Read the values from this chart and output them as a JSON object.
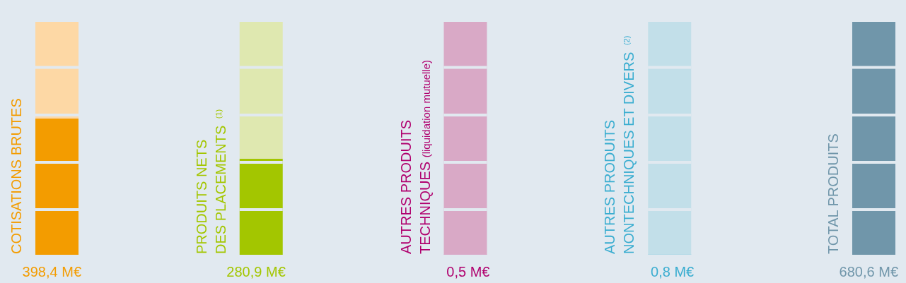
{
  "chart_data": {
    "type": "bar",
    "stacked": true,
    "categories": [
      "COTISATIONS BRUTES",
      "PRODUITS NETS\nDES PLACEMENTS $^{(1)}$",
      "AUTRES PRODUITS\nTECHNIQUES (liquidation mutuelle)",
      "AUTRES PRODUITS\nNONTECHNIQUES ET DIVERS $^{(2)}$",
      "TOTAL PRODUITS"
    ],
    "series": [
      {
        "values": [
          398.4,
          280.9,
          0.5,
          0.8,
          680.6
        ],
        "colors": [
          "#f39c00",
          "#a3c600",
          "#b0006e",
          "#3aadd0",
          "#7096aa"
        ],
        "value_labels": [
          "398,4 M€",
          "280,9 M€",
          "0,5 M€",
          "0,8 M€",
          "680,6 M€"
        ]
      },
      {
        "values": [
          282.2,
          399.7,
          680.1,
          679.8,
          0
        ],
        "colors": [
          "#fdd8a5",
          "#dfe8b0",
          "#d9a9c6",
          "#c2dfe9",
          "#7096aa"
        ]
      }
    ],
    "ylim": [
      0,
      680.6
    ]
  }
}
